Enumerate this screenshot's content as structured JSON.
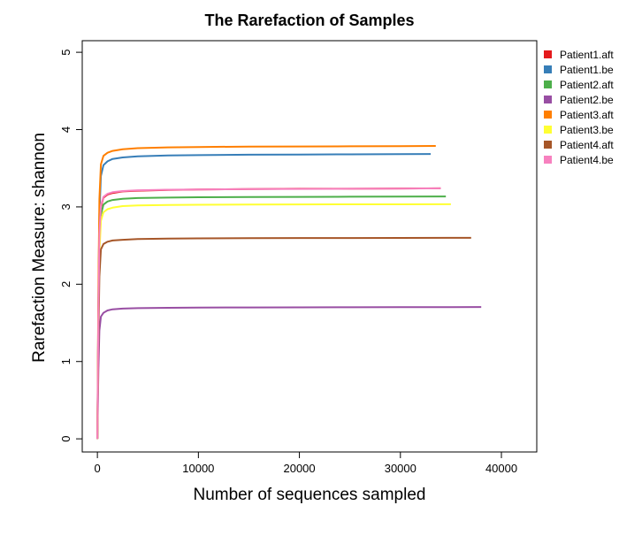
{
  "chart_data": {
    "type": "line",
    "title": "The Rarefaction of Samples",
    "xlabel": "Number of sequences sampled",
    "ylabel": "Rarefaction Measure: shannon",
    "xlim": [
      -1500,
      43500
    ],
    "ylim": [
      -0.17,
      5.15
    ],
    "xticks": [
      0,
      10000,
      20000,
      30000,
      40000
    ],
    "yticks": [
      0,
      1,
      2,
      3,
      4,
      5
    ],
    "grid": false,
    "legend_position": "right",
    "series": [
      {
        "name": "Patient1.aft",
        "color": "#e41a1c",
        "x": [
          0,
          100,
          200,
          350,
          600,
          1000,
          1500,
          2500,
          4000,
          7000,
          10000,
          15000,
          20000,
          25000,
          30000,
          34000
        ],
        "y": [
          0,
          1.6,
          2.6,
          3.0,
          3.12,
          3.16,
          3.18,
          3.2,
          3.21,
          3.22,
          3.225,
          3.23,
          3.235,
          3.235,
          3.238,
          3.24
        ]
      },
      {
        "name": "Patient1.be",
        "color": "#377eb8",
        "x": [
          0,
          100,
          200,
          350,
          600,
          1000,
          1500,
          2500,
          4000,
          7000,
          10000,
          15000,
          20000,
          25000,
          30000,
          33000
        ],
        "y": [
          0,
          1.8,
          2.9,
          3.4,
          3.54,
          3.59,
          3.62,
          3.64,
          3.655,
          3.665,
          3.67,
          3.675,
          3.678,
          3.68,
          3.682,
          3.684
        ]
      },
      {
        "name": "Patient2.aft",
        "color": "#4daf4a",
        "x": [
          0,
          100,
          200,
          350,
          600,
          1000,
          1500,
          2500,
          4000,
          7000,
          10000,
          15000,
          20000,
          25000,
          30000,
          34500
        ],
        "y": [
          0,
          1.5,
          2.5,
          2.9,
          3.03,
          3.07,
          3.09,
          3.105,
          3.115,
          3.12,
          3.125,
          3.128,
          3.13,
          3.132,
          3.133,
          3.135
        ]
      },
      {
        "name": "Patient2.be",
        "color": "#984ea3",
        "x": [
          0,
          100,
          200,
          350,
          600,
          1000,
          1500,
          2500,
          4000,
          7000,
          10000,
          15000,
          20000,
          25000,
          30000,
          35000,
          38000
        ],
        "y": [
          0,
          0.9,
          1.4,
          1.58,
          1.63,
          1.66,
          1.675,
          1.685,
          1.69,
          1.695,
          1.698,
          1.7,
          1.701,
          1.702,
          1.703,
          1.704,
          1.705
        ]
      },
      {
        "name": "Patient3.aft",
        "color": "#ff7f00",
        "x": [
          0,
          100,
          200,
          350,
          600,
          1000,
          1500,
          2500,
          4000,
          7000,
          10000,
          15000,
          20000,
          25000,
          30000,
          33500
        ],
        "y": [
          0,
          2.0,
          3.1,
          3.55,
          3.66,
          3.7,
          3.725,
          3.745,
          3.76,
          3.77,
          3.775,
          3.78,
          3.782,
          3.784,
          3.786,
          3.788
        ]
      },
      {
        "name": "Patient3.be",
        "color": "#ffff33",
        "x": [
          0,
          100,
          200,
          350,
          600,
          1000,
          1500,
          2500,
          4000,
          7000,
          10000,
          15000,
          20000,
          25000,
          30000,
          35000
        ],
        "y": [
          0,
          1.5,
          2.4,
          2.82,
          2.93,
          2.97,
          2.99,
          3.01,
          3.02,
          3.025,
          3.028,
          3.03,
          3.032,
          3.033,
          3.034,
          3.035
        ]
      },
      {
        "name": "Patient4.aft",
        "color": "#a65628",
        "x": [
          0,
          100,
          200,
          350,
          600,
          1000,
          1500,
          2500,
          4000,
          7000,
          10000,
          15000,
          20000,
          25000,
          30000,
          35000,
          37000
        ],
        "y": [
          0,
          1.3,
          2.1,
          2.45,
          2.52,
          2.55,
          2.565,
          2.575,
          2.585,
          2.59,
          2.593,
          2.595,
          2.597,
          2.598,
          2.599,
          2.6,
          2.6
        ]
      },
      {
        "name": "Patient4.be",
        "color": "#f781bf",
        "x": [
          0,
          100,
          200,
          350,
          600,
          1000,
          1500,
          2500,
          4000,
          7000,
          10000,
          15000,
          20000,
          25000,
          30000,
          34000
        ],
        "y": [
          0,
          1.65,
          2.65,
          3.02,
          3.13,
          3.17,
          3.19,
          3.205,
          3.215,
          3.222,
          3.226,
          3.23,
          3.233,
          3.235,
          3.237,
          3.24
        ]
      }
    ]
  }
}
